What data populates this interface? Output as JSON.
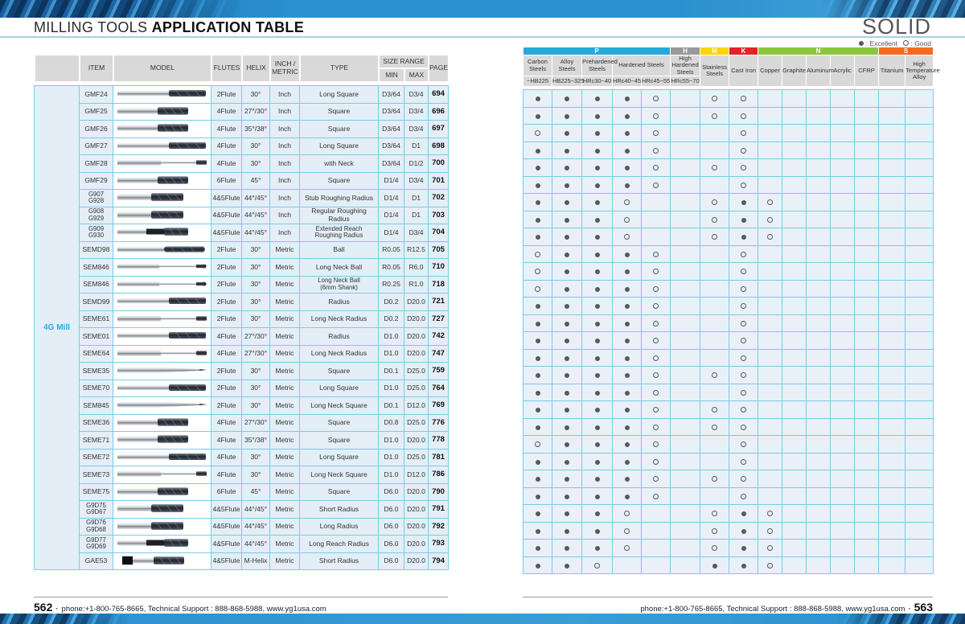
{
  "header": {
    "title_regular": "MILLING TOOLS ",
    "title_bold": "APPLICATION TABLE",
    "title_right": "SOLID"
  },
  "legend": {
    "excellent_label": ": Excellent",
    "good_label": ": Good"
  },
  "left_table": {
    "group_label": "4G Mill",
    "columns": {
      "item": "ITEM",
      "model": "MODEL",
      "flutes": "FLUTES",
      "helix": "HELIX",
      "unit_line1": "INCH /",
      "unit_line2": "METRIC",
      "type": "TYPE",
      "size_range": "SIZE RANGE",
      "min": "MIN",
      "max": "MAX",
      "page": "PAGE"
    },
    "rows": [
      {
        "item": "GMF24",
        "item2": "",
        "tool": "long",
        "flutes": "2Flute",
        "helix": "30°",
        "unit": "Inch",
        "type": "Long Square",
        "type2": "",
        "min": "D3/64",
        "max": "D3/4",
        "page": "694"
      },
      {
        "item": "GMF25",
        "item2": "",
        "tool": "short",
        "flutes": "4Flute",
        "helix": "27°/30°",
        "unit": "Inch",
        "type": "Square",
        "type2": "",
        "min": "D3/64",
        "max": "D3/4",
        "page": "696"
      },
      {
        "item": "GMF26",
        "item2": "",
        "tool": "short",
        "flutes": "4Flute",
        "helix": "35°/38°",
        "unit": "Inch",
        "type": "Square",
        "type2": "",
        "min": "D3/64",
        "max": "D3/4",
        "page": "697"
      },
      {
        "item": "GMF27",
        "item2": "",
        "tool": "long",
        "flutes": "4Flute",
        "helix": "30°",
        "unit": "Inch",
        "type": "Long Square",
        "type2": "",
        "min": "D3/64",
        "max": "D1",
        "page": "698"
      },
      {
        "item": "GMF28",
        "item2": "",
        "tool": "neck",
        "flutes": "4Flute",
        "helix": "30°",
        "unit": "Inch",
        "type": "with Neck",
        "type2": "",
        "min": "D3/64",
        "max": "D1/2",
        "page": "700"
      },
      {
        "item": "GMF29",
        "item2": "",
        "tool": "short",
        "flutes": "6Flute",
        "helix": "45°",
        "unit": "Inch",
        "type": "Square",
        "type2": "",
        "min": "D1/4",
        "max": "D3/4",
        "page": "701"
      },
      {
        "item": "G907",
        "item2": "G928",
        "tool": "stub",
        "flutes": "4&5Flute",
        "helix": "44°/45°",
        "unit": "Inch",
        "type": "Stub Roughing Radius",
        "type2": "",
        "min": "D1/4",
        "max": "D1",
        "page": "702"
      },
      {
        "item": "G908",
        "item2": "G929",
        "tool": "stub",
        "flutes": "4&5Flute",
        "helix": "44°/45°",
        "unit": "Inch",
        "type": "Regular Roughing Radius",
        "type2": "",
        "min": "D1/4",
        "max": "D1",
        "page": "703"
      },
      {
        "item": "G909",
        "item2": "G930",
        "tool": "stubreach",
        "flutes": "4&5Flute",
        "helix": "44°/45°",
        "unit": "Inch",
        "type": "Extended Reach",
        "type2": "Roughing Radius",
        "min": "D1/4",
        "max": "D3/4",
        "page": "704"
      },
      {
        "item": "SEMD98",
        "item2": "",
        "tool": "ball",
        "flutes": "2Flute",
        "helix": "30°",
        "unit": "Metric",
        "type": "Ball",
        "type2": "",
        "min": "R0.05",
        "max": "R12.5",
        "page": "705"
      },
      {
        "item": "SEM846",
        "item2": "",
        "tool": "ballneck",
        "flutes": "2Flute",
        "helix": "30°",
        "unit": "Metric",
        "type": "Long Neck Ball",
        "type2": "",
        "min": "R0.05",
        "max": "R6.0",
        "page": "710"
      },
      {
        "item": "SEM846",
        "item2": "",
        "tool": "ballneck",
        "flutes": "2Flute",
        "helix": "30°",
        "unit": "Metric",
        "type": "Long Neck Ball",
        "type2": "(6mm Shank)",
        "min": "R0.25",
        "max": "R1.0",
        "page": "718"
      },
      {
        "item": "SEMD99",
        "item2": "",
        "tool": "long",
        "flutes": "2Flute",
        "helix": "30°",
        "unit": "Metric",
        "type": "Radius",
        "type2": "",
        "min": "D0.2",
        "max": "D20.0",
        "page": "721"
      },
      {
        "item": "SEME61",
        "item2": "",
        "tool": "neck",
        "flutes": "2Flute",
        "helix": "30°",
        "unit": "Metric",
        "type": "Long Neck Radius",
        "type2": "",
        "min": "D0.2",
        "max": "D20.0",
        "page": "727"
      },
      {
        "item": "SEME01",
        "item2": "",
        "tool": "long",
        "flutes": "4Flute",
        "helix": "27°/30°",
        "unit": "Metric",
        "type": "Radius",
        "type2": "",
        "min": "D1.0",
        "max": "D20.0",
        "page": "742"
      },
      {
        "item": "SEME64",
        "item2": "",
        "tool": "neck",
        "flutes": "4Flute",
        "helix": "27°/30°",
        "unit": "Metric",
        "type": "Long Neck Radius",
        "type2": "",
        "min": "D1.0",
        "max": "D20.0",
        "page": "747"
      },
      {
        "item": "SEME35",
        "item2": "",
        "tool": "taper",
        "flutes": "2Flute",
        "helix": "30°",
        "unit": "Metric",
        "type": "Square",
        "type2": "",
        "min": "D0.1",
        "max": "D25.0",
        "page": "759"
      },
      {
        "item": "SEME70",
        "item2": "",
        "tool": "long",
        "flutes": "2Flute",
        "helix": "30°",
        "unit": "Metric",
        "type": "Long Square",
        "type2": "",
        "min": "D1.0",
        "max": "D25.0",
        "page": "764"
      },
      {
        "item": "SEM845",
        "item2": "",
        "tool": "taper",
        "flutes": "2Flute",
        "helix": "30°",
        "unit": "Metric",
        "type": "Long Neck Square",
        "type2": "",
        "min": "D0.1",
        "max": "D12.0",
        "page": "769"
      },
      {
        "item": "SEME36",
        "item2": "",
        "tool": "short",
        "flutes": "4Flute",
        "helix": "27°/30°",
        "unit": "Metric",
        "type": "Square",
        "type2": "",
        "min": "D0.8",
        "max": "D25.0",
        "page": "776"
      },
      {
        "item": "SEME71",
        "item2": "",
        "tool": "short",
        "flutes": "4Flute",
        "helix": "35°/38°",
        "unit": "Metric",
        "type": "Square",
        "type2": "",
        "min": "D1.0",
        "max": "D20.0",
        "page": "778"
      },
      {
        "item": "SEME72",
        "item2": "",
        "tool": "long",
        "flutes": "4Flute",
        "helix": "30°",
        "unit": "Metric",
        "type": "Long Square",
        "type2": "",
        "min": "D1.0",
        "max": "D25.0",
        "page": "781"
      },
      {
        "item": "SEME73",
        "item2": "",
        "tool": "neck",
        "flutes": "4Flute",
        "helix": "30°",
        "unit": "Metric",
        "type": "Long Neck Square",
        "type2": "",
        "min": "D1.0",
        "max": "D12.0",
        "page": "786"
      },
      {
        "item": "SEME75",
        "item2": "",
        "tool": "short",
        "flutes": "6Flute",
        "helix": "45°",
        "unit": "Metric",
        "type": "Square",
        "type2": "",
        "min": "D6.0",
        "max": "D20.0",
        "page": "790"
      },
      {
        "item": "G9D75",
        "item2": "G9D67",
        "tool": "stub",
        "flutes": "4&5Flute",
        "helix": "44°/45°",
        "unit": "Metric",
        "type": "Short Radius",
        "type2": "",
        "min": "D6.0",
        "max": "D20.0",
        "page": "791"
      },
      {
        "item": "G9D76",
        "item2": "G9D68",
        "tool": "stub",
        "flutes": "4&5Flute",
        "helix": "44°/45°",
        "unit": "Metric",
        "type": "Long Radius",
        "type2": "",
        "min": "D6.0",
        "max": "D20.0",
        "page": "792"
      },
      {
        "item": "G9D77",
        "item2": "G9D69",
        "tool": "stubreach",
        "flutes": "4&5Flute",
        "helix": "44°/45°",
        "unit": "Metric",
        "type": "Long Reach Radius",
        "type2": "",
        "min": "D6.0",
        "max": "D20.0",
        "page": "793"
      },
      {
        "item": "GAE53",
        "item2": "",
        "tool": "collar",
        "flutes": "4&5Flute",
        "helix": "M-Helix",
        "unit": "Metric",
        "type": "Short Radius",
        "type2": "",
        "min": "D6.0",
        "max": "D20.0",
        "page": "794"
      }
    ]
  },
  "right_table": {
    "groups": [
      {
        "code": "P",
        "color": "#29a8dc",
        "span": 5
      },
      {
        "code": "H",
        "color": "#97999b",
        "span": 1
      },
      {
        "code": "M",
        "color": "#ffd400",
        "span": 1
      },
      {
        "code": "K",
        "color": "#e62129",
        "span": 1
      },
      {
        "code": "N",
        "color": "#8cc63f",
        "span": 5
      },
      {
        "code": "S",
        "color": "#f26b21",
        "span": 2
      }
    ],
    "materials": [
      {
        "name": "Carbon Steels",
        "hardness": "~HB225"
      },
      {
        "name": "Alloy Steels",
        "hardness": "HB225~325"
      },
      {
        "name": "Prehardened Steels",
        "hardness": "HRc30~40"
      },
      {
        "name": "Hardened Steels",
        "hardness": "HRc40~45"
      },
      {
        "name": "Hardened Steels",
        "hardness": "HRc45~55"
      },
      {
        "name": "High Hardened Steels",
        "hardness": "HRc55~70"
      },
      {
        "name": "Stainless Steels",
        "hardness": ""
      },
      {
        "name": "Cast Iron",
        "hardness": ""
      },
      {
        "name": "Copper",
        "hardness": ""
      },
      {
        "name": "Graphite",
        "hardness": ""
      },
      {
        "name": "Aluminum",
        "hardness": ""
      },
      {
        "name": "Acrylic",
        "hardness": ""
      },
      {
        "name": "CFRP",
        "hardness": ""
      },
      {
        "name": "Titanium",
        "hardness": ""
      },
      {
        "name": "High Temperature Alloy",
        "hardness": ""
      }
    ],
    "ratings": [
      [
        2,
        2,
        2,
        2,
        1,
        0,
        1,
        1,
        0,
        0,
        0,
        0,
        0,
        0,
        0
      ],
      [
        2,
        2,
        2,
        2,
        1,
        0,
        1,
        1,
        0,
        0,
        0,
        0,
        0,
        0,
        0
      ],
      [
        1,
        2,
        2,
        2,
        1,
        0,
        0,
        1,
        0,
        0,
        0,
        0,
        0,
        0,
        0
      ],
      [
        2,
        2,
        2,
        2,
        1,
        0,
        0,
        1,
        0,
        0,
        0,
        0,
        0,
        0,
        0
      ],
      [
        2,
        2,
        2,
        2,
        1,
        0,
        1,
        1,
        0,
        0,
        0,
        0,
        0,
        0,
        0
      ],
      [
        2,
        2,
        2,
        2,
        1,
        0,
        0,
        1,
        0,
        0,
        0,
        0,
        0,
        0,
        0
      ],
      [
        2,
        2,
        2,
        1,
        0,
        0,
        1,
        2,
        1,
        0,
        0,
        0,
        0,
        0,
        0
      ],
      [
        2,
        2,
        2,
        1,
        0,
        0,
        1,
        2,
        1,
        0,
        0,
        0,
        0,
        0,
        0
      ],
      [
        2,
        2,
        2,
        1,
        0,
        0,
        1,
        2,
        1,
        0,
        0,
        0,
        0,
        0,
        0
      ],
      [
        1,
        2,
        2,
        2,
        1,
        0,
        0,
        1,
        0,
        0,
        0,
        0,
        0,
        0,
        0
      ],
      [
        1,
        2,
        2,
        2,
        1,
        0,
        0,
        1,
        0,
        0,
        0,
        0,
        0,
        0,
        0
      ],
      [
        1,
        2,
        2,
        2,
        1,
        0,
        0,
        1,
        0,
        0,
        0,
        0,
        0,
        0,
        0
      ],
      [
        2,
        2,
        2,
        2,
        1,
        0,
        0,
        1,
        0,
        0,
        0,
        0,
        0,
        0,
        0
      ],
      [
        2,
        2,
        2,
        2,
        1,
        0,
        0,
        1,
        0,
        0,
        0,
        0,
        0,
        0,
        0
      ],
      [
        2,
        2,
        2,
        2,
        1,
        0,
        0,
        1,
        0,
        0,
        0,
        0,
        0,
        0,
        0
      ],
      [
        2,
        2,
        2,
        2,
        1,
        0,
        0,
        1,
        0,
        0,
        0,
        0,
        0,
        0,
        0
      ],
      [
        2,
        2,
        2,
        2,
        1,
        0,
        1,
        1,
        0,
        0,
        0,
        0,
        0,
        0,
        0
      ],
      [
        2,
        2,
        2,
        2,
        1,
        0,
        0,
        1,
        0,
        0,
        0,
        0,
        0,
        0,
        0
      ],
      [
        2,
        2,
        2,
        2,
        1,
        0,
        1,
        1,
        0,
        0,
        0,
        0,
        0,
        0,
        0
      ],
      [
        2,
        2,
        2,
        2,
        1,
        0,
        1,
        1,
        0,
        0,
        0,
        0,
        0,
        0,
        0
      ],
      [
        1,
        2,
        2,
        2,
        1,
        0,
        0,
        1,
        0,
        0,
        0,
        0,
        0,
        0,
        0
      ],
      [
        2,
        2,
        2,
        2,
        1,
        0,
        0,
        1,
        0,
        0,
        0,
        0,
        0,
        0,
        0
      ],
      [
        2,
        2,
        2,
        2,
        1,
        0,
        1,
        1,
        0,
        0,
        0,
        0,
        0,
        0,
        0
      ],
      [
        2,
        2,
        2,
        2,
        1,
        0,
        0,
        1,
        0,
        0,
        0,
        0,
        0,
        0,
        0
      ],
      [
        2,
        2,
        2,
        1,
        0,
        0,
        1,
        2,
        1,
        0,
        0,
        0,
        0,
        0,
        0
      ],
      [
        2,
        2,
        2,
        1,
        0,
        0,
        1,
        2,
        1,
        0,
        0,
        0,
        0,
        0,
        0
      ],
      [
        2,
        2,
        2,
        1,
        0,
        0,
        1,
        2,
        1,
        0,
        0,
        0,
        0,
        0,
        0
      ],
      [
        2,
        2,
        1,
        0,
        0,
        0,
        2,
        2,
        1,
        0,
        0,
        0,
        0,
        0,
        0
      ]
    ]
  },
  "footer_left": {
    "page": "562",
    "separator": "·",
    "text": "phone:+1-800-765-8665,  Technical Support : 888-868-5988,  www.yg1usa.com"
  },
  "footer_right": {
    "page": "563",
    "separator": "·",
    "text": "phone:+1-800-765-8665,  Technical Support : 888-868-5988,  www.yg1usa.com"
  }
}
